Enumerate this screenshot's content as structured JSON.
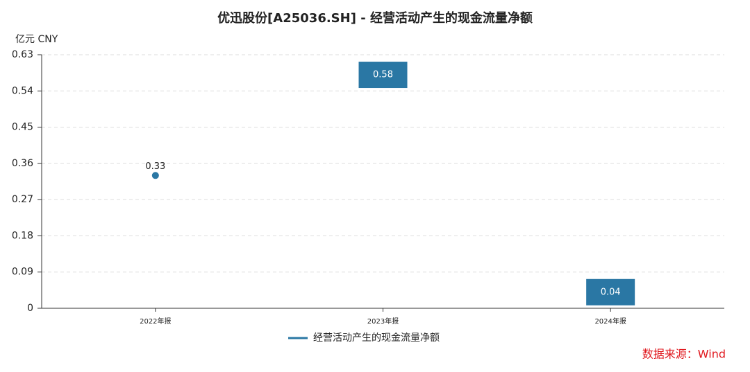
{
  "chart_data": {
    "type": "line",
    "title": "优迅股份[A25036.SH] - 经营活动产生的现金流量净额",
    "y_unit_label": "亿元  CNY",
    "source": "数据来源：Wind",
    "categories": [
      "2022年报",
      "2023年报",
      "2024年报"
    ],
    "series": [
      {
        "name": "经营活动产生的现金流量净额",
        "color": "#2a77a4",
        "values": [
          0.33,
          0.58,
          0.04
        ]
      }
    ],
    "ylim": [
      0,
      0.63
    ],
    "yticks": [
      0,
      0.09,
      0.18,
      0.27,
      0.36,
      0.45,
      0.54,
      0.63
    ],
    "grid": true
  }
}
